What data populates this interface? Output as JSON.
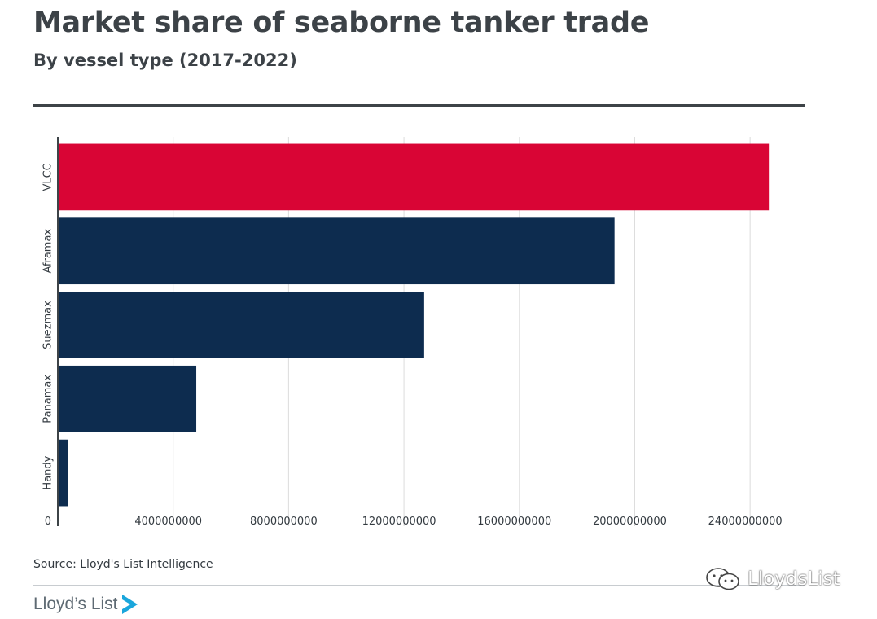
{
  "header": {
    "title": "Market share of seaborne tanker trade",
    "subtitle": "By vessel type (2017-2022)"
  },
  "footer": {
    "source": "Source: Lloyd's List Intelligence",
    "brand": "Lloyd’s List",
    "watermark": "LloydsList"
  },
  "colors": {
    "highlight": "#d90535",
    "bar": "#0d2c4f",
    "grid": "#dcdcdc",
    "axis": "#3d4347",
    "text": "#333a40"
  },
  "chart_data": {
    "type": "bar",
    "orientation": "horizontal",
    "categories": [
      "VLCC",
      "Aframax",
      "Suezmax",
      "Panamax",
      "Handy"
    ],
    "values": [
      24650000000,
      19300000000,
      12700000000,
      4800000000,
      350000000
    ],
    "highlight_index": 0,
    "xlim": [
      0,
      26000000000
    ],
    "xticks": [
      0,
      4000000000,
      8000000000,
      12000000000,
      16000000000,
      20000000000,
      24000000000
    ],
    "xtick_labels": [
      "0",
      "4000000000",
      "8000000000",
      "12000000000",
      "16000000000",
      "20000000000",
      "24000000000"
    ],
    "grid": true
  }
}
